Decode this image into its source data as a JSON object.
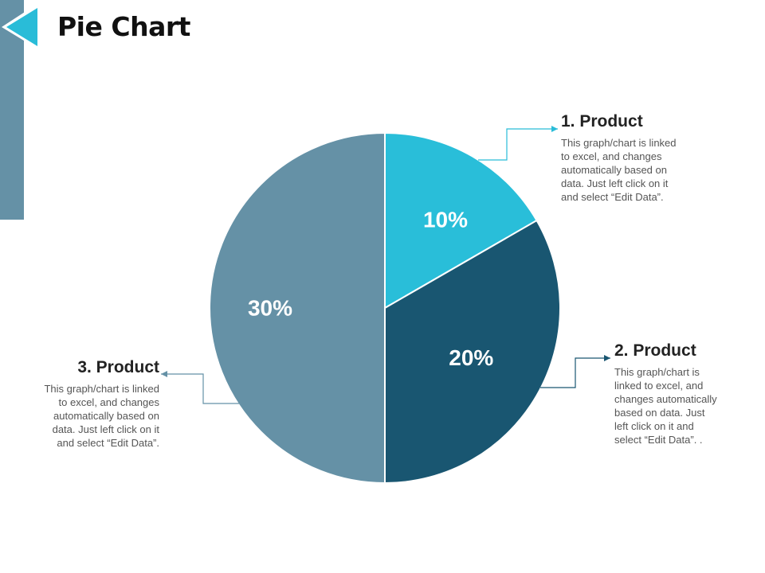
{
  "header": {
    "title": "Pie Chart",
    "accent_color": "#29bcd8",
    "sidebar_color": "#6591a6"
  },
  "chart_data": {
    "type": "pie",
    "categories": [
      "1. Product",
      "2. Product",
      "3. Product"
    ],
    "values": [
      10,
      20,
      30
    ],
    "labels": [
      "10%",
      "20%",
      "30%"
    ],
    "colors": [
      "#29bed9",
      "#195671",
      "#6591a6"
    ],
    "legend": "none"
  },
  "callouts": [
    {
      "title": "1. Product",
      "lines": [
        "This graph/chart is linked",
        "to excel, and changes",
        "automatically based on",
        "data. Just left click on it",
        "and select “Edit Data”."
      ]
    },
    {
      "title": "2. Product",
      "lines": [
        "This graph/chart is",
        "linked to excel, and",
        "changes automatically",
        "based on data. Just",
        "left click on it and",
        "select “Edit Data”. ."
      ]
    },
    {
      "title": "3. Product",
      "lines": [
        "This graph/chart is linked",
        "to excel, and changes",
        "automatically based on",
        "data. Just left click on it",
        "and select “Edit Data”."
      ]
    }
  ]
}
